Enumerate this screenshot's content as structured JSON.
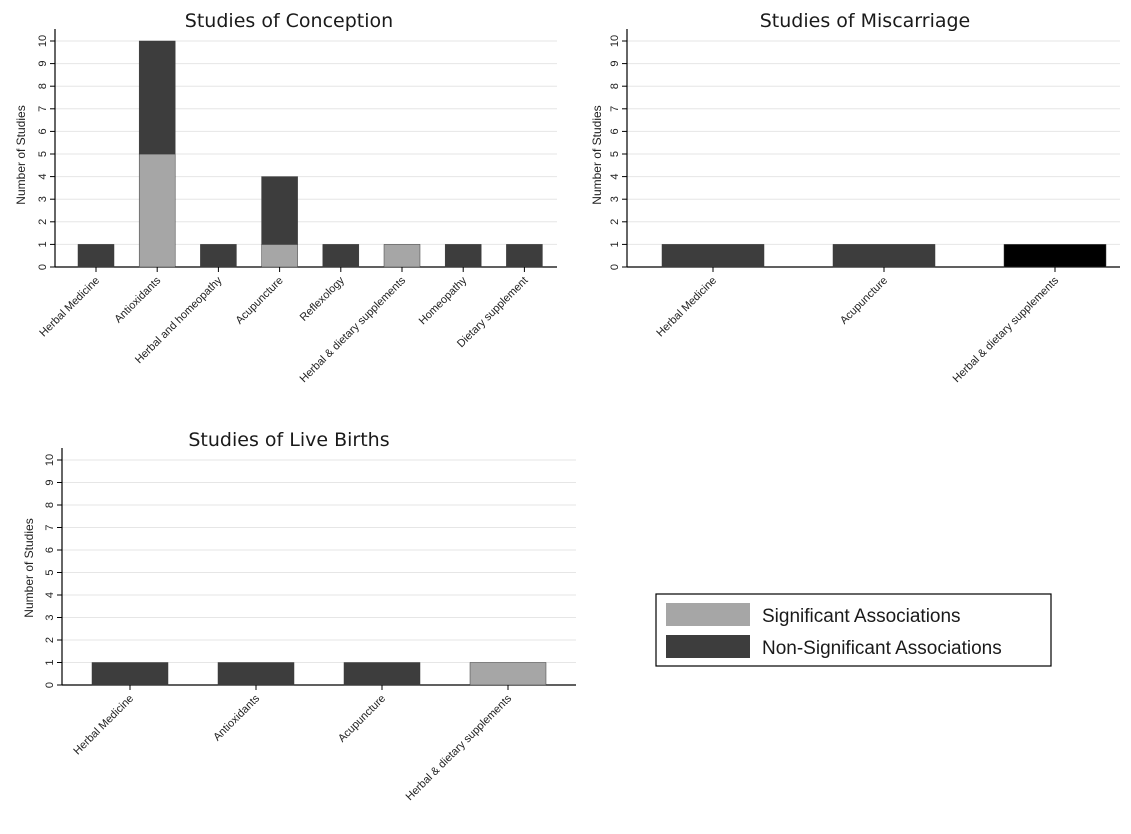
{
  "colors": {
    "significant": "#a6a6a6",
    "non_significant": "#3d3d3d",
    "black": "#000000"
  },
  "legend": {
    "items": [
      {
        "label": "Significant Associations",
        "color": "#a6a6a6"
      },
      {
        "label": "Non-Significant Associations",
        "color": "#3d3d3d"
      }
    ]
  },
  "chart_data": [
    {
      "type": "bar",
      "stacked": true,
      "title": "Studies of Conception",
      "ylabel": "Number of Studies",
      "ylim": [
        0,
        10
      ],
      "yticks": [
        0,
        1,
        2,
        3,
        4,
        5,
        6,
        7,
        8,
        9,
        10
      ],
      "grid": true,
      "categories": [
        "Herbal Medicine",
        "Antioxidants",
        "Herbal and homeopathy",
        "Acupuncture",
        "Reflexology",
        "Herbal & dietary supplements",
        "Homeopathy",
        "Dietary supplement"
      ],
      "series": [
        {
          "name": "Significant Associations",
          "color": "#a6a6a6",
          "values": [
            0,
            5,
            0,
            1,
            0,
            1,
            0,
            0
          ]
        },
        {
          "name": "Non-Significant Associations",
          "color": "#3d3d3d",
          "values": [
            1,
            5,
            1,
            3,
            1,
            0,
            1,
            1
          ]
        }
      ]
    },
    {
      "type": "bar",
      "stacked": true,
      "title": "Studies of Miscarriage",
      "ylabel": "Number of Studies",
      "ylim": [
        0,
        10
      ],
      "yticks": [
        0,
        1,
        2,
        3,
        4,
        5,
        6,
        7,
        8,
        9,
        10
      ],
      "grid": true,
      "categories": [
        "Herbal Medicine",
        "Acupuncture",
        "Herbal & dietary supplements"
      ],
      "series": [
        {
          "name": "Significant Associations",
          "color": "#a6a6a6",
          "values": [
            0,
            0,
            0
          ]
        },
        {
          "name": "Non-Significant Associations",
          "color": "#3d3d3d",
          "values": [
            1,
            1,
            0
          ]
        },
        {
          "name": "",
          "color": "#000000",
          "values": [
            0,
            0,
            1
          ]
        }
      ]
    },
    {
      "type": "bar",
      "stacked": true,
      "title": "Studies of Live Births",
      "ylabel": "Number of Studies",
      "ylim": [
        0,
        10
      ],
      "yticks": [
        0,
        1,
        2,
        3,
        4,
        5,
        6,
        7,
        8,
        9,
        10
      ],
      "grid": true,
      "categories": [
        "Herbal Medicine",
        "Antioxidants",
        "Acupuncture",
        "Herbal & dietary supplements"
      ],
      "series": [
        {
          "name": "Significant Associations",
          "color": "#a6a6a6",
          "values": [
            0,
            0,
            0,
            1
          ]
        },
        {
          "name": "Non-Significant Associations",
          "color": "#3d3d3d",
          "values": [
            1,
            1,
            1,
            0
          ]
        }
      ]
    }
  ]
}
